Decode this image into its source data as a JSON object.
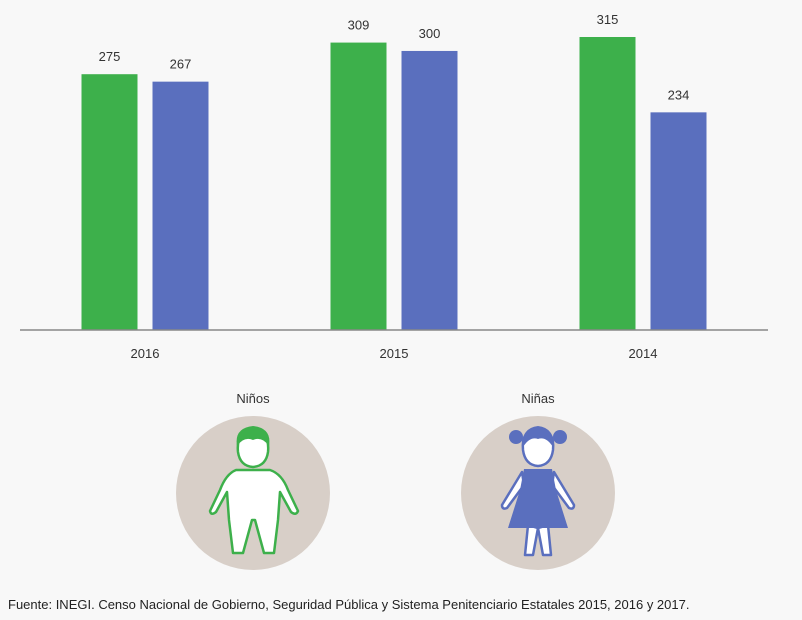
{
  "chart_data": {
    "type": "bar",
    "categories": [
      "2016",
      "2015",
      "2014"
    ],
    "series": [
      {
        "name": "Niños",
        "values": [
          275,
          309,
          315
        ],
        "color": "#3db04b"
      },
      {
        "name": "Niñas",
        "values": [
          267,
          300,
          234
        ],
        "color": "#5a6fbe"
      }
    ],
    "ylim": [
      0,
      315
    ],
    "grid": false,
    "legend_placement": "bottom"
  },
  "legend": {
    "boys": {
      "label": "Niños",
      "icon": "boy-icon"
    },
    "girls": {
      "label": "Niñas",
      "icon": "girl-icon"
    }
  },
  "footer": "Fuente: INEGI. Censo Nacional de Gobierno, Seguridad Pública y Sistema Penitenciario Estatales  2015, 2016 y 2017."
}
